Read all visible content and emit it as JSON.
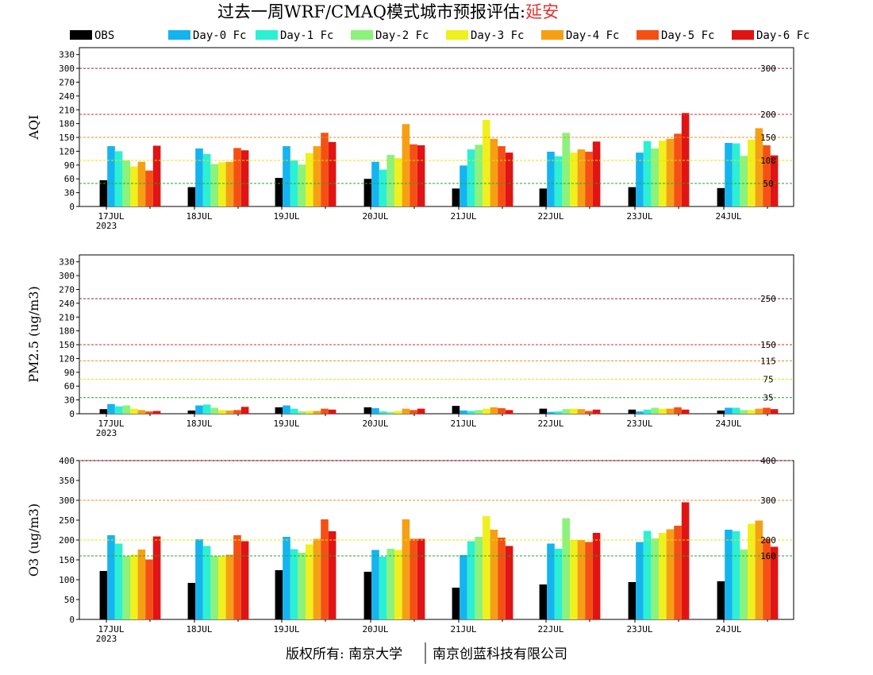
{
  "header": {
    "title_main": "过去一周WRF/CMAQ模式城市预报评估:",
    "title_city": "延安",
    "title_city_color": "#e03030"
  },
  "footer": {
    "left": "版权所有: 南京大学",
    "right": "南京创蓝科技有限公司"
  },
  "colors": {
    "OBS": "#000000",
    "Day-0 Fc": "#14b4f0",
    "Day-1 Fc": "#2cf0d4",
    "Day-2 Fc": "#8cf27c",
    "Day-3 Fc": "#f0f01e",
    "Day-4 Fc": "#f5a014",
    "Day-5 Fc": "#f55014",
    "Day-6 Fc": "#e01414"
  },
  "chart_data": [
    {
      "type": "bar",
      "ylabel": "AQI",
      "ylim": [
        0,
        345
      ],
      "yticks": [
        0,
        30,
        60,
        90,
        120,
        150,
        180,
        210,
        240,
        270,
        300,
        330
      ],
      "categories": [
        "17JUL",
        "18JUL",
        "19JUL",
        "20JUL",
        "21JUL",
        "22JUL",
        "23JUL",
        "24JUL"
      ],
      "year_label": "2023",
      "thresholds": [
        {
          "value": 50,
          "label": "50",
          "color": "#22aa22"
        },
        {
          "value": 100,
          "label": "100",
          "color": "#e6e600"
        },
        {
          "value": 150,
          "label": "150",
          "color": "#f08c1e"
        },
        {
          "value": 200,
          "label": "200",
          "color": "#d03030"
        },
        {
          "value": 300,
          "label": "300",
          "color": "#902040"
        }
      ],
      "series": [
        {
          "name": "OBS",
          "values": [
            57,
            42,
            62,
            60,
            39,
            39,
            42,
            40
          ]
        },
        {
          "name": "Day-0 Fc",
          "values": [
            131,
            126,
            131,
            97,
            89,
            119,
            117,
            138
          ]
        },
        {
          "name": "Day-1 Fc",
          "values": [
            120,
            114,
            100,
            80,
            124,
            109,
            142,
            137
          ]
        },
        {
          "name": "Day-2 Fc",
          "values": [
            100,
            92,
            91,
            112,
            134,
            160,
            126,
            110
          ]
        },
        {
          "name": "Day-3 Fc",
          "values": [
            87,
            96,
            116,
            105,
            188,
            117,
            143,
            145
          ]
        },
        {
          "name": "Day-4 Fc",
          "values": [
            97,
            97,
            131,
            179,
            147,
            124,
            147,
            170
          ]
        },
        {
          "name": "Day-5 Fc",
          "values": [
            78,
            127,
            160,
            135,
            131,
            119,
            158,
            133
          ]
        },
        {
          "name": "Day-6 Fc",
          "values": [
            132,
            122,
            140,
            133,
            117,
            141,
            203,
            111
          ]
        }
      ]
    },
    {
      "type": "bar",
      "ylabel": "PM2.5 (ug/m3)",
      "ylim": [
        0,
        345
      ],
      "yticks": [
        0,
        30,
        60,
        90,
        120,
        150,
        180,
        210,
        240,
        270,
        300,
        330
      ],
      "categories": [
        "17JUL",
        "18JUL",
        "19JUL",
        "20JUL",
        "21JUL",
        "22JUL",
        "23JUL",
        "24JUL"
      ],
      "year_label": "2023",
      "thresholds": [
        {
          "value": 35,
          "label": "35",
          "color": "#22aa22"
        },
        {
          "value": 75,
          "label": "75",
          "color": "#e6e600"
        },
        {
          "value": 115,
          "label": "115",
          "color": "#f08c1e"
        },
        {
          "value": 150,
          "label": "150",
          "color": "#d03030"
        },
        {
          "value": 250,
          "label": "250",
          "color": "#902040"
        }
      ],
      "series": [
        {
          "name": "OBS",
          "values": [
            10,
            7,
            14,
            14,
            17,
            11,
            9,
            7
          ]
        },
        {
          "name": "Day-0 Fc",
          "values": [
            21,
            18,
            18,
            12,
            7,
            4,
            5,
            13
          ]
        },
        {
          "name": "Day-1 Fc",
          "values": [
            16,
            20,
            11,
            5,
            6,
            5,
            9,
            13
          ]
        },
        {
          "name": "Day-2 Fc",
          "values": [
            18,
            13,
            5,
            4,
            8,
            10,
            13,
            8
          ]
        },
        {
          "name": "Day-3 Fc",
          "values": [
            11,
            8,
            6,
            6,
            11,
            11,
            11,
            8
          ]
        },
        {
          "name": "Day-4 Fc",
          "values": [
            8,
            7,
            6,
            11,
            14,
            10,
            11,
            11
          ]
        },
        {
          "name": "Day-5 Fc",
          "values": [
            5,
            8,
            11,
            8,
            12,
            6,
            14,
            13
          ]
        },
        {
          "name": "Day-6 Fc",
          "values": [
            6,
            15,
            9,
            11,
            8,
            9,
            9,
            10
          ]
        }
      ]
    },
    {
      "type": "bar",
      "ylabel": "O3 (ug/m3)",
      "ylim": [
        0,
        400
      ],
      "yticks": [
        0,
        50,
        100,
        150,
        200,
        250,
        300,
        350,
        400
      ],
      "categories": [
        "17JUL",
        "18JUL",
        "19JUL",
        "20JUL",
        "21JUL",
        "22JUL",
        "23JUL",
        "24JUL"
      ],
      "year_label": "2023",
      "thresholds": [
        {
          "value": 160,
          "label": "160",
          "color": "#22aa22"
        },
        {
          "value": 200,
          "label": "200",
          "color": "#e6e600"
        },
        {
          "value": 300,
          "label": "300",
          "color": "#f08c1e"
        },
        {
          "value": 400,
          "label": "400",
          "color": "#d03030"
        }
      ],
      "series": [
        {
          "name": "OBS",
          "values": [
            122,
            92,
            124,
            120,
            80,
            88,
            94,
            96
          ]
        },
        {
          "name": "Day-0 Fc",
          "values": [
            212,
            202,
            208,
            175,
            162,
            191,
            195,
            226
          ]
        },
        {
          "name": "Day-1 Fc",
          "values": [
            191,
            185,
            177,
            158,
            197,
            178,
            223,
            222
          ]
        },
        {
          "name": "Day-2 Fc",
          "values": [
            160,
            160,
            168,
            178,
            208,
            255,
            204,
            176
          ]
        },
        {
          "name": "Day-3 Fc",
          "values": [
            163,
            160,
            189,
            175,
            260,
            200,
            218,
            241
          ]
        },
        {
          "name": "Day-4 Fc",
          "values": [
            176,
            163,
            203,
            252,
            226,
            200,
            227,
            249
          ]
        },
        {
          "name": "Day-5 Fc",
          "values": [
            151,
            212,
            252,
            203,
            206,
            195,
            236,
            203
          ]
        },
        {
          "name": "Day-6 Fc",
          "values": [
            209,
            197,
            222,
            203,
            185,
            218,
            295,
            183
          ]
        }
      ]
    }
  ]
}
